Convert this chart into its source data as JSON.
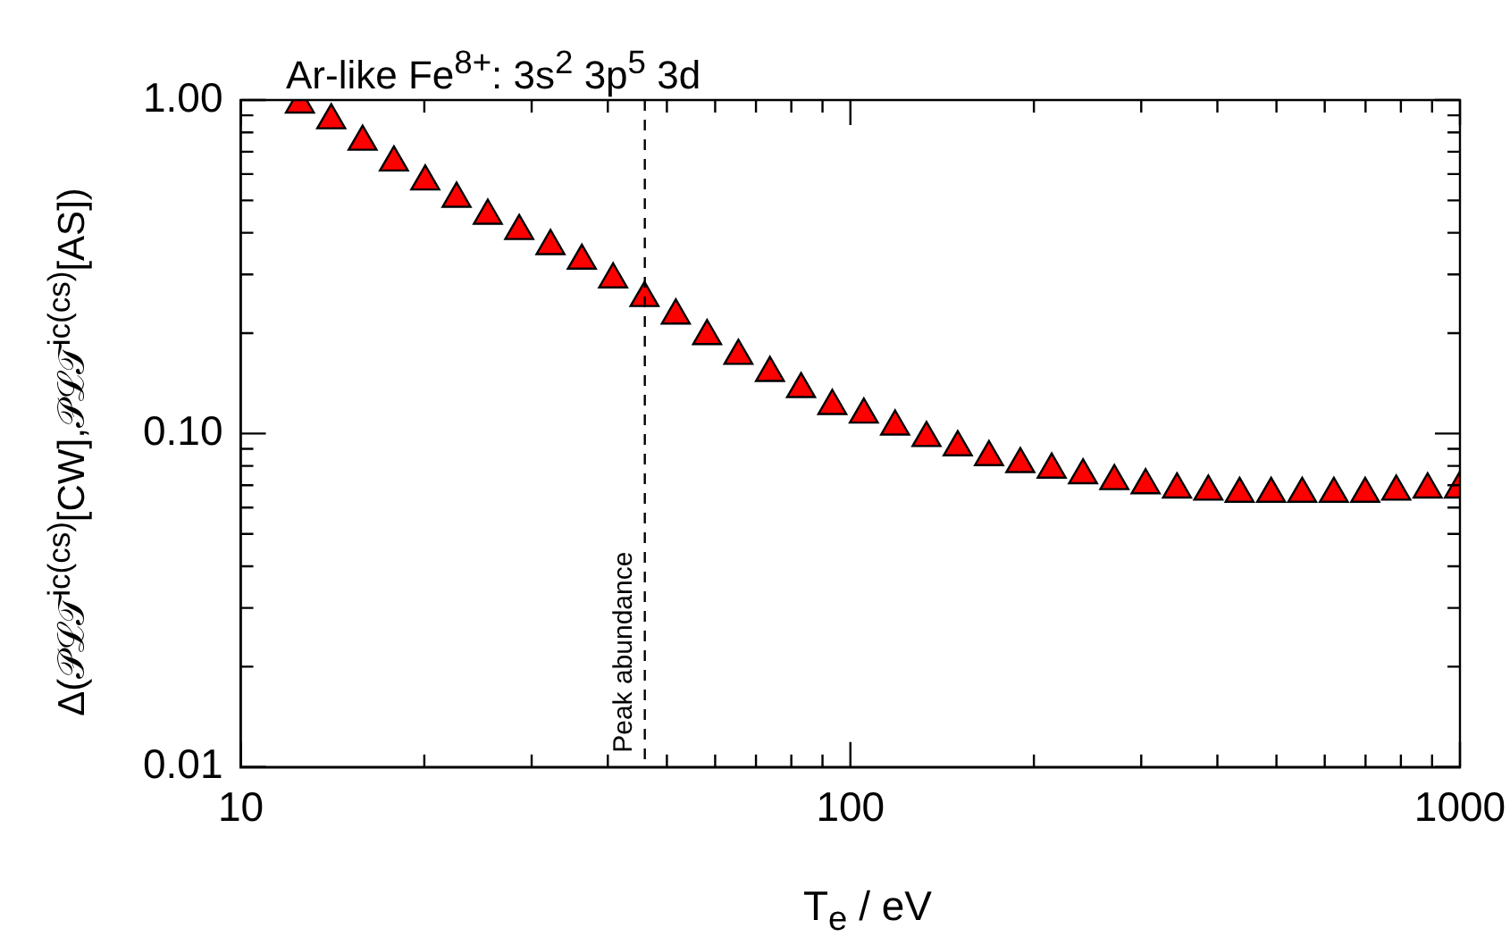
{
  "chart_data": {
    "type": "scatter",
    "title": "Ar-like Fe$^{8+}$: 3s$^{2}$ 3p$^{5}$ 3d",
    "xlabel": "T$_{e}$ / eV",
    "ylabel": "Δ(𝒫ℒ𝒯$^{ic(cs)}$[CW],𝒫ℒ𝒯$^{ic(cs)}$[AS])",
    "log": "xy",
    "grid": false,
    "legend": false,
    "marker": "triangle",
    "xlim": [
      10,
      1000
    ],
    "ylim": [
      0.01,
      1.0
    ],
    "xticks": [
      10,
      {
        "value": 20,
        "label": null
      },
      {
        "value": 30,
        "label": null
      },
      {
        "value": 40,
        "label": null
      },
      {
        "value": 50,
        "label": null
      },
      {
        "value": 60,
        "label": null
      },
      {
        "value": 70,
        "label": null
      },
      {
        "value": 80,
        "label": null
      },
      {
        "value": 90,
        "label": null
      },
      100,
      {
        "value": 200,
        "label": null
      },
      {
        "value": 300,
        "label": null
      },
      {
        "value": 400,
        "label": null
      },
      {
        "value": 500,
        "label": null
      },
      {
        "value": 600,
        "label": null
      },
      {
        "value": 700,
        "label": null
      },
      {
        "value": 800,
        "label": null
      },
      {
        "value": 900,
        "label": null
      },
      1000
    ],
    "yticks": [
      {
        "value": 0.01,
        "label": "0.01"
      },
      {
        "value": 0.02,
        "label": null
      },
      {
        "value": 0.03,
        "label": null
      },
      {
        "value": 0.04,
        "label": null
      },
      {
        "value": 0.05,
        "label": null
      },
      {
        "value": 0.06,
        "label": null
      },
      {
        "value": 0.07,
        "label": null
      },
      {
        "value": 0.08,
        "label": null
      },
      {
        "value": 0.09,
        "label": null
      },
      {
        "value": 0.1,
        "label": "0.10"
      },
      {
        "value": 0.2,
        "label": null
      },
      {
        "value": 0.3,
        "label": null
      },
      {
        "value": 0.4,
        "label": null
      },
      {
        "value": 0.5,
        "label": null
      },
      {
        "value": 0.6,
        "label": null
      },
      {
        "value": 0.7,
        "label": null
      },
      {
        "value": 0.8,
        "label": null
      },
      {
        "value": 0.9,
        "label": null
      },
      {
        "value": 1.0,
        "label": "1.00"
      }
    ],
    "ref_lines": [
      {
        "axis": "x",
        "value": 46,
        "label": "Peak abundance",
        "line_style": "dashed",
        "color": "#000000"
      }
    ],
    "series": [
      {
        "color": "#ff0000",
        "x": [
          12.5,
          14.07,
          15.84,
          17.83,
          20.07,
          22.59,
          25.42,
          28.62,
          32.21,
          36.26,
          40.81,
          45.94,
          51.71,
          58.2,
          65.5,
          73.8,
          83.0,
          93.4,
          105.2,
          118.4,
          133.3,
          150.0,
          168.8,
          190.0,
          213.9,
          240.8,
          271.0,
          305,
          343.4,
          386.5,
          435,
          490,
          551,
          621,
          699,
          786,
          885,
          996
        ],
        "values": [
          0.97,
          0.87,
          0.75,
          0.65,
          0.57,
          0.506,
          0.45,
          0.405,
          0.365,
          0.33,
          0.29,
          0.255,
          0.226,
          0.196,
          0.171,
          0.152,
          0.136,
          0.121,
          0.114,
          0.105,
          0.097,
          0.091,
          0.085,
          0.081,
          0.078,
          0.075,
          0.072,
          0.07,
          0.068,
          0.067,
          0.066,
          0.066,
          0.066,
          0.066,
          0.066,
          0.067,
          0.068,
          0.068
        ]
      }
    ]
  }
}
